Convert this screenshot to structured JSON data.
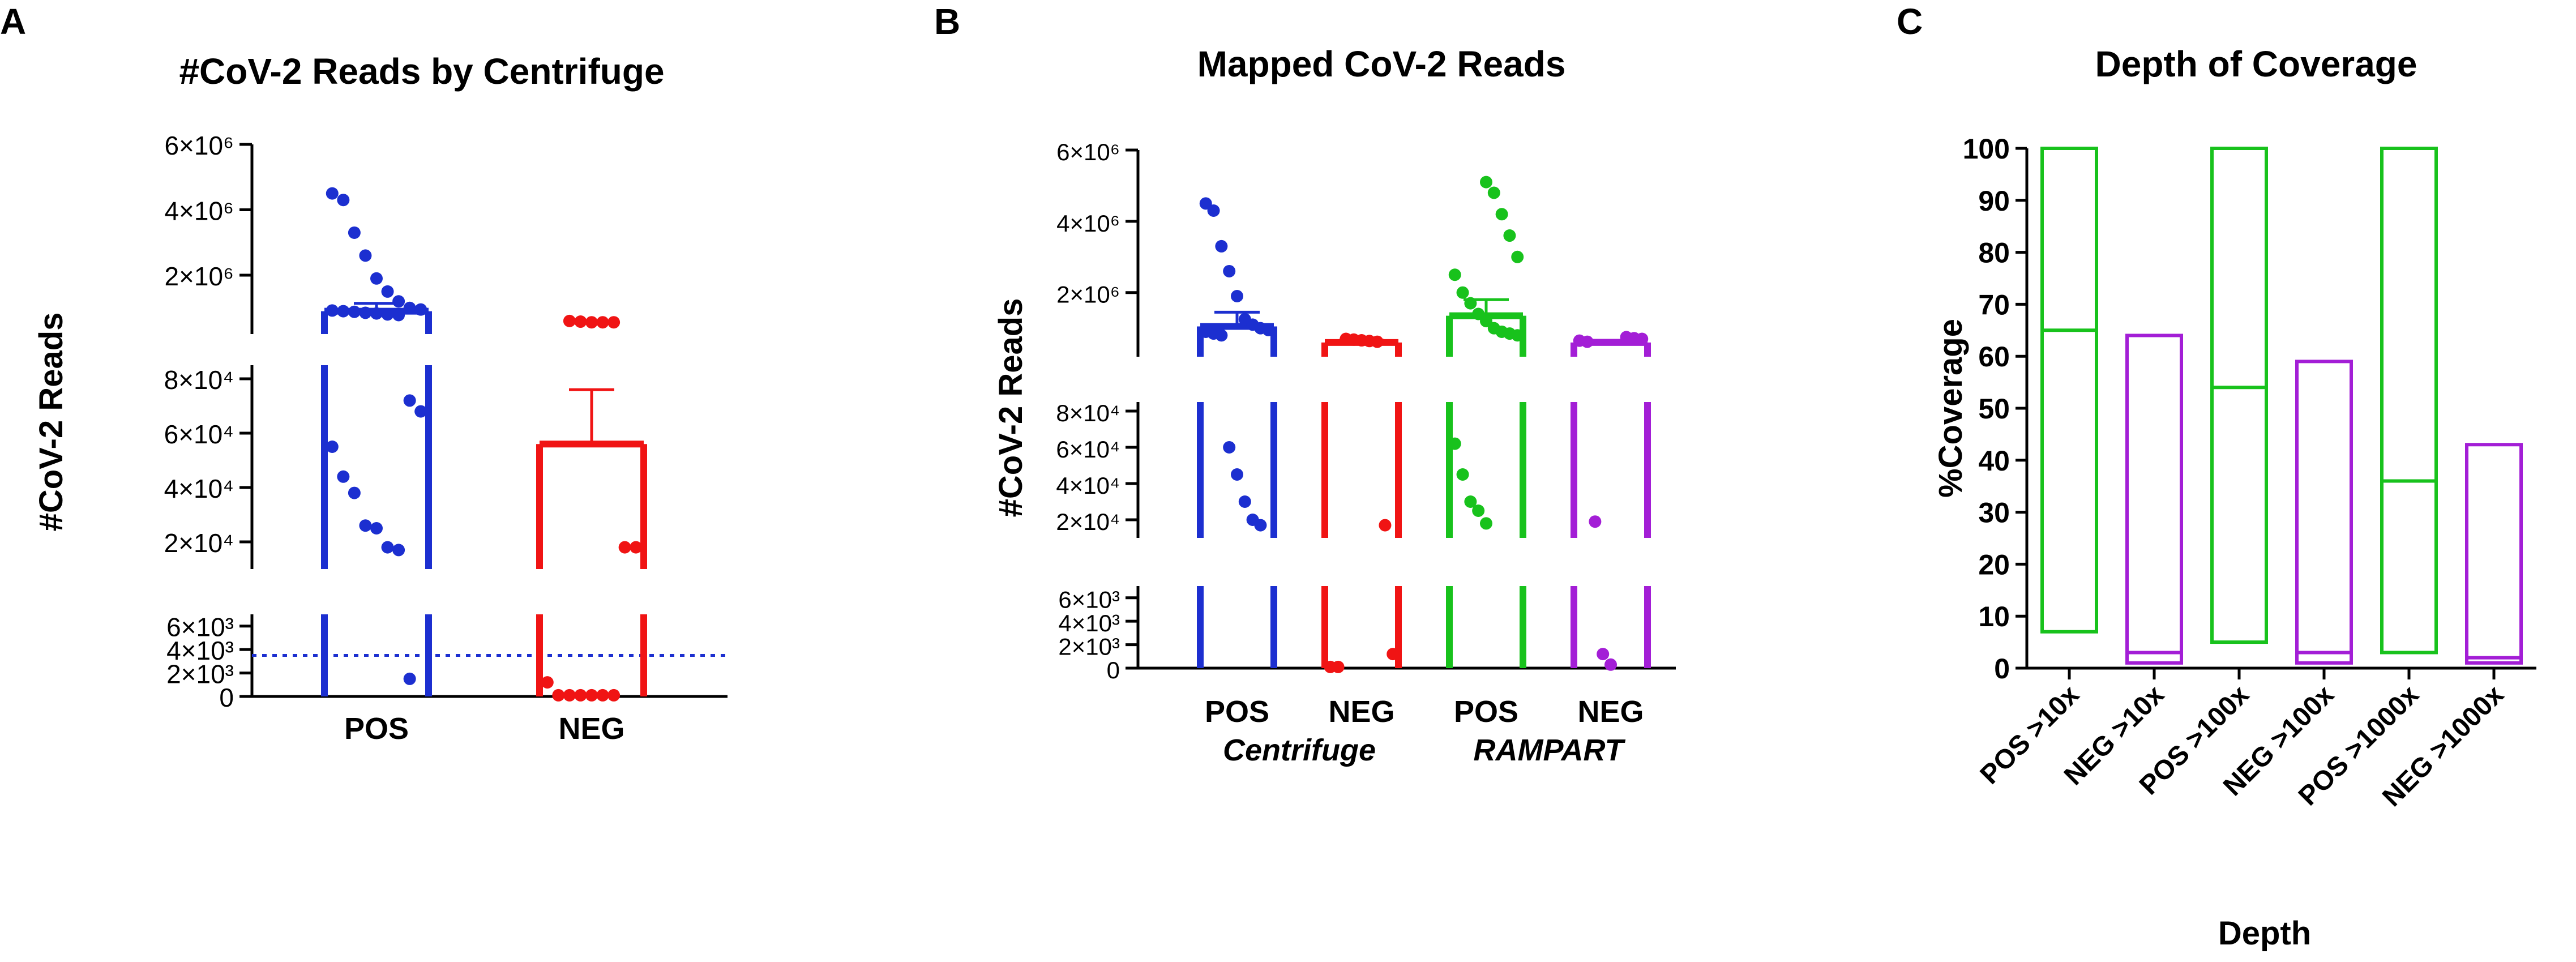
{
  "colors": {
    "blue": "#1c2fd0",
    "red": "#f01414",
    "green": "#18c21c",
    "purple": "#a31ed6",
    "axis": "#000000"
  },
  "panels": {
    "a": {
      "letter": "A",
      "title": "#CoV-2 Reads by Centrifuge"
    },
    "b": {
      "letter": "B",
      "title": "Mapped  CoV-2 Reads"
    },
    "c": {
      "letter": "C",
      "title": "Depth of Coverage"
    }
  },
  "chart_data": [
    {
      "type": "scatter",
      "panel": "A",
      "title": "#CoV-2 Reads by Centrifuge",
      "ylabel": "#CoV-2 Reads",
      "xlabel": "",
      "categories": [
        "POS",
        "NEG"
      ],
      "y_segments": [
        {
          "ylim": [
            0,
            7000
          ],
          "ticks": [
            0,
            2000,
            4000,
            6000
          ],
          "tick_labels": [
            "0",
            "2×10³",
            "4×10³",
            "6×10³"
          ]
        },
        {
          "ylim": [
            10000,
            85000
          ],
          "ticks": [
            20000,
            40000,
            60000,
            80000
          ],
          "tick_labels": [
            "2×10⁴",
            "4×10⁴",
            "6×10⁴",
            "8×10⁴"
          ]
        },
        {
          "ylim": [
            200000,
            6000000
          ],
          "ticks": [
            2000000,
            4000000,
            6000000
          ],
          "tick_labels": [
            "2×10⁶",
            "4×10⁶",
            "6×10⁶"
          ]
        }
      ],
      "reference_line": 3500,
      "series": [
        {
          "name": "POS",
          "color_key": "blue",
          "mean": 900000,
          "sem": 240000,
          "bar_bottom": 0,
          "points": [
            4500000,
            4300000,
            3300000,
            2600000,
            1900000,
            1500000,
            1200000,
            1000000,
            950000,
            920000,
            900000,
            880000,
            850000,
            830000,
            800000,
            780000,
            72000,
            68000,
            55000,
            44000,
            38000,
            26000,
            25000,
            18000,
            17000,
            1500
          ]
        },
        {
          "name": "NEG",
          "color_key": "red",
          "mean": 56000,
          "sem": 20000,
          "bar_bottom": 0,
          "points": [
            600000,
            580000,
            560000,
            560000,
            560000,
            18000,
            18000,
            1200,
            100,
            100,
            100,
            100,
            100,
            100
          ]
        }
      ]
    },
    {
      "type": "scatter",
      "panel": "B",
      "title": "Mapped  CoV-2 Reads",
      "ylabel": "#CoV-2 Reads",
      "xlabel": "",
      "categories": [
        "POS",
        "NEG",
        "POS",
        "NEG"
      ],
      "group_labels": [
        "Centrifuge",
        "RAMPART"
      ],
      "y_segments": [
        {
          "ylim": [
            0,
            7000
          ],
          "ticks": [
            0,
            2000,
            4000,
            6000
          ],
          "tick_labels": [
            "0",
            "2×10³",
            "4×10³",
            "6×10³"
          ]
        },
        {
          "ylim": [
            10000,
            85000
          ],
          "ticks": [
            20000,
            40000,
            60000,
            80000
          ],
          "tick_labels": [
            "2×10⁴",
            "4×10⁴",
            "6×10⁴",
            "8×10⁴"
          ]
        },
        {
          "ylim": [
            200000,
            6000000
          ],
          "ticks": [
            2000000,
            4000000,
            6000000
          ],
          "tick_labels": [
            "2×10⁶",
            "4×10⁶",
            "6×10⁶"
          ]
        }
      ],
      "series": [
        {
          "name": "POS",
          "group": "Centrifuge",
          "color_key": "blue",
          "mean": 1050000,
          "sem": 400000,
          "bar_bottom": 0,
          "points": [
            4500000,
            4300000,
            3300000,
            2600000,
            1900000,
            1250000,
            1100000,
            1000000,
            950000,
            900000,
            850000,
            800000,
            60000,
            45000,
            30000,
            20000,
            17000
          ]
        },
        {
          "name": "NEG",
          "group": "Centrifuge",
          "color_key": "red",
          "mean": 600000,
          "sem": 60000,
          "bar_bottom": 0,
          "points": [
            700000,
            680000,
            660000,
            640000,
            620000,
            17000,
            1200,
            100,
            100
          ]
        },
        {
          "name": "POS",
          "group": "RAMPART",
          "color_key": "green",
          "mean": 1350000,
          "sem": 450000,
          "bar_bottom": 0,
          "points": [
            5100000,
            4800000,
            4200000,
            3600000,
            3000000,
            2500000,
            2000000,
            1700000,
            1400000,
            1200000,
            1000000,
            900000,
            850000,
            800000,
            62000,
            45000,
            30000,
            25000,
            18000
          ]
        },
        {
          "name": "NEG",
          "group": "RAMPART",
          "color_key": "purple",
          "mean": 600000,
          "sem": 60000,
          "bar_bottom": 0,
          "points": [
            750000,
            720000,
            700000,
            650000,
            620000,
            19000,
            1200,
            300
          ]
        }
      ]
    },
    {
      "type": "bar",
      "subtype": "floating-bar",
      "panel": "C",
      "title": "Depth of Coverage",
      "xlabel": "Depth",
      "ylabel": "%Coverage",
      "ylim": [
        0,
        100
      ],
      "yticks": [
        0,
        10,
        20,
        30,
        40,
        50,
        60,
        70,
        80,
        90,
        100
      ],
      "categories": [
        "POS >10x",
        "NEG >10x",
        "POS >100x",
        "NEG >100x",
        "POS >1000x",
        "NEG >1000x"
      ],
      "series": [
        {
          "name": "",
          "bars": [
            {
              "min": 7,
              "max": 100,
              "line": 65,
              "color_key": "green"
            },
            {
              "min": 1,
              "max": 64,
              "line": 3,
              "color_key": "purple"
            },
            {
              "min": 5,
              "max": 100,
              "line": 54,
              "color_key": "green"
            },
            {
              "min": 1,
              "max": 59,
              "line": 3,
              "color_key": "purple"
            },
            {
              "min": 3,
              "max": 100,
              "line": 36,
              "color_key": "green"
            },
            {
              "min": 1,
              "max": 43,
              "line": 2,
              "color_key": "purple"
            }
          ]
        }
      ]
    }
  ]
}
